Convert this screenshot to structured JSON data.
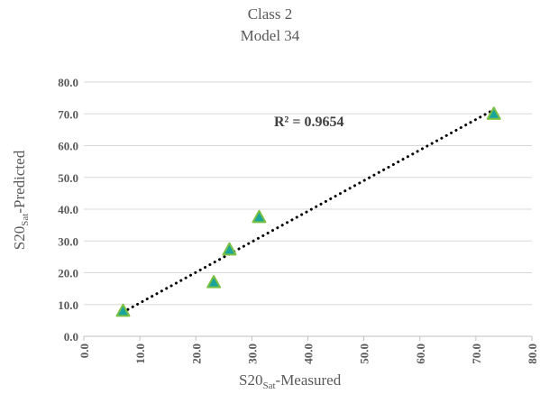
{
  "chart_data": {
    "type": "scatter",
    "title": [
      "Class 2",
      "Model 34"
    ],
    "xlabel": {
      "base": "S20",
      "sub": "Sat",
      "rest": "-Measured"
    },
    "ylabel": {
      "base": "S20",
      "sub": "Sat",
      "rest": "-Predicted"
    },
    "xlim": [
      0,
      80
    ],
    "ylim": [
      0,
      80
    ],
    "x_ticks": [
      "0.0",
      "10.0",
      "20.0",
      "30.0",
      "40.0",
      "50.0",
      "60.0",
      "70.0",
      "80.0"
    ],
    "y_ticks": [
      "0.0",
      "10.0",
      "20.0",
      "30.0",
      "40.0",
      "50.0",
      "60.0",
      "70.0",
      "80.0"
    ],
    "grid": "horizontal",
    "points": [
      {
        "x": 7.0,
        "y": 8.0
      },
      {
        "x": 23.2,
        "y": 17.0
      },
      {
        "x": 26.0,
        "y": 27.3
      },
      {
        "x": 31.3,
        "y": 37.5
      },
      {
        "x": 73.2,
        "y": 70.0
      }
    ],
    "trendline": {
      "style": "dotted",
      "x": [
        7.0,
        73.2
      ],
      "y": [
        7.6,
        71.3
      ]
    },
    "annotation": "R² = 0.9654",
    "colors": {
      "marker_fill": "#1aa59c",
      "marker_edge": "#7ac143",
      "trendline": "#000000",
      "grid": "#d9d9d9",
      "text": "#595959"
    }
  }
}
